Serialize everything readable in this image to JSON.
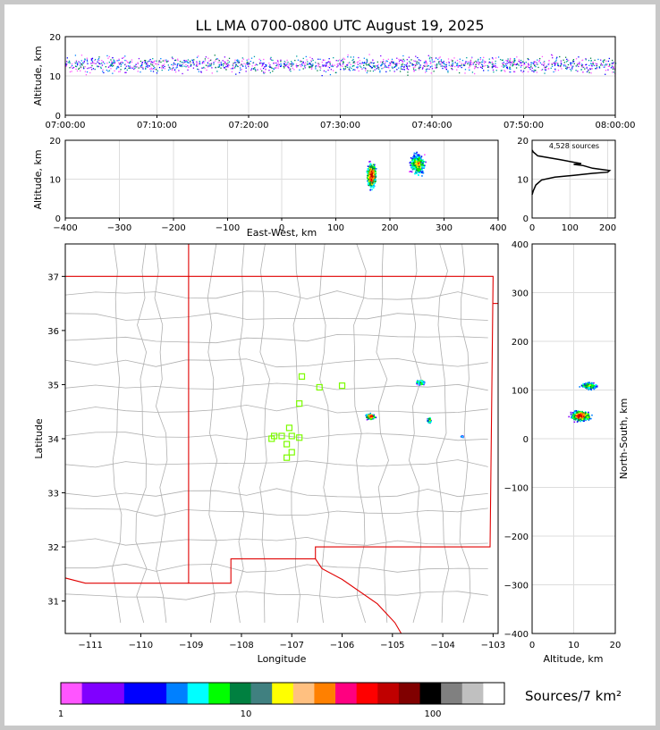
{
  "title": "LL LMA 0700-0800 UTC August 19, 2025",
  "colors": {
    "page_border": "#c8c8c8",
    "map_border": "#e00000",
    "county": "#b0b0b0",
    "station": "#7cfc00",
    "grid": "#dddddd"
  },
  "panels": {
    "time_alt": {
      "ylabel": "Altitude, km",
      "ylim": [
        0,
        20
      ],
      "yticks": [
        "0",
        "10",
        "20"
      ],
      "xticks": [
        "07:00:00",
        "07:10:00",
        "07:20:00",
        "07:30:00",
        "07:40:00",
        "07:50:00",
        "08:00:00"
      ]
    },
    "ew_alt": {
      "ylabel": "Altitude, km",
      "xlabel": "East-West, km",
      "ylim": [
        0,
        20
      ],
      "yticks": [
        "0",
        "10",
        "20"
      ],
      "xticks": [
        "−400",
        "−300",
        "−200",
        "−100",
        "0",
        "100",
        "200",
        "300",
        "400"
      ]
    },
    "hist": {
      "label": "4,528 sources",
      "yticks": [
        "0",
        "10",
        "20"
      ],
      "xticks": [
        "0",
        "100",
        "200"
      ]
    },
    "map": {
      "xlabel": "Longitude",
      "ylabel": "Latitude",
      "xticks": [
        "−111",
        "−110",
        "−109",
        "−108",
        "−107",
        "−106",
        "−105",
        "−104",
        "−103"
      ],
      "yticks": [
        "31",
        "32",
        "33",
        "34",
        "35",
        "36",
        "37"
      ]
    },
    "ns_alt": {
      "xlabel": "Altitude, km",
      "ylabel": "North-South, km",
      "xticks": [
        "0",
        "10",
        "20"
      ],
      "yticks": [
        "400",
        "300",
        "200",
        "100",
        "0",
        "−100",
        "−200",
        "−300",
        "−400"
      ]
    }
  },
  "colorbar": {
    "label": "Sources/7 km²",
    "ticks": [
      "1",
      "10",
      "100"
    ],
    "colors": [
      "#ff55ff",
      "#8000ff",
      "#8000ff",
      "#0000ff",
      "#0000ff",
      "#0080ff",
      "#00ffff",
      "#00ff00",
      "#008040",
      "#408080",
      "#ffff00",
      "#ffc080",
      "#ff8000",
      "#ff0080",
      "#ff0000",
      "#c00000",
      "#800000",
      "#000000",
      "#808080",
      "#c0c0c0",
      "#ffffff"
    ]
  },
  "chart_data": [
    {
      "type": "scatter",
      "title": "LL LMA 0700-0800 UTC August 19, 2025",
      "xlabel": "",
      "ylabel": "Altitude, km",
      "xlim": [
        "07:00:00",
        "08:00:00"
      ],
      "ylim": [
        0,
        20
      ],
      "summary": "lightning sources mostly between 10 and 16 km altitude throughout the hour"
    },
    {
      "type": "scatter",
      "xlabel": "East-West, km",
      "ylabel": "Altitude, km",
      "xlim": [
        -400,
        400
      ],
      "ylim": [
        0,
        20
      ],
      "clusters": [
        {
          "x_center": 165,
          "y_center": 11
        },
        {
          "x_center": 250,
          "y_center": 14
        }
      ]
    },
    {
      "type": "line",
      "label": "4,528 sources",
      "xlim": [
        0,
        220
      ],
      "ylim": [
        0,
        20
      ],
      "points": [
        [
          0,
          17.5
        ],
        [
          3,
          17
        ],
        [
          15,
          16
        ],
        [
          75,
          15
        ],
        [
          130,
          14
        ],
        [
          110,
          13.8
        ],
        [
          135,
          13.5
        ],
        [
          160,
          12.8
        ],
        [
          205,
          12.2
        ],
        [
          200,
          11.8
        ],
        [
          160,
          11.5
        ],
        [
          110,
          11
        ],
        [
          60,
          10.5
        ],
        [
          25,
          9.8
        ],
        [
          10,
          8.5
        ],
        [
          3,
          7
        ],
        [
          0,
          6
        ]
      ]
    },
    {
      "type": "scatter",
      "xlabel": "Longitude",
      "ylabel": "Latitude",
      "xlim": [
        -111.5,
        -102.9
      ],
      "ylim": [
        30.4,
        37.6
      ],
      "stations": [
        [
          -106.8,
          35.15
        ],
        [
          -106.45,
          34.95
        ],
        [
          -106.0,
          34.98
        ],
        [
          -106.85,
          34.65
        ],
        [
          -107.35,
          34.05
        ],
        [
          -107.2,
          34.05
        ],
        [
          -107.05,
          34.2
        ],
        [
          -107.0,
          34.05
        ],
        [
          -107.1,
          33.9
        ],
        [
          -107.0,
          33.75
        ],
        [
          -107.1,
          33.65
        ],
        [
          -106.85,
          34.02
        ],
        [
          -107.4,
          34.0
        ]
      ],
      "clusters": [
        {
          "lon": -105.45,
          "lat": 34.4
        },
        {
          "lon": -104.45,
          "lat": 35.0
        },
        {
          "lon": -104.3,
          "lat": 34.35
        },
        {
          "lon": -103.6,
          "lat": 34.05
        }
      ]
    },
    {
      "type": "scatter",
      "xlabel": "Altitude, km",
      "ylabel": "North-South, km",
      "xlim": [
        0,
        20
      ],
      "ylim": [
        -400,
        400
      ],
      "clusters": [
        {
          "x_center": 13.5,
          "y_center": 110
        },
        {
          "x_center": 11.5,
          "y_center": 50
        }
      ]
    }
  ]
}
